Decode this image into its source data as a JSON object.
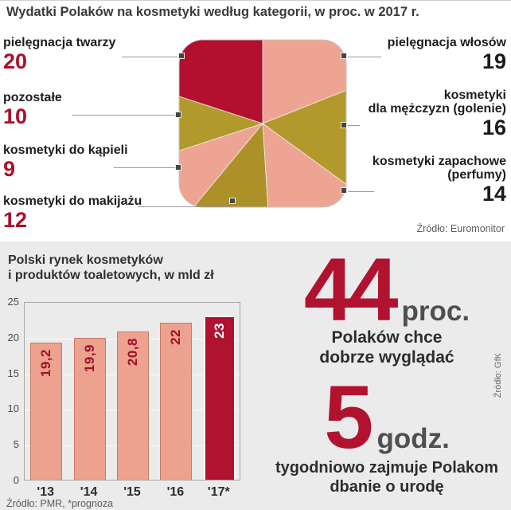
{
  "page": {
    "title": "Wydatki Polaków na kosmetyki  według kategorii, w proc. w 2017 r."
  },
  "pie_section": {
    "labels": {
      "twarz": "pielęgnacja twarzy",
      "pozostale": "pozostałe",
      "kapiel": "kosmetyki do kąpieli",
      "makijaz": "kosmetyki do makijażu",
      "wlosy": "pielęgnacja włosów",
      "mezczyzni_line1": "kosmetyki",
      "mezczyzni_line2": "dla mężczyzn (golenie)",
      "perfumy_line1": "kosmetyki zapachowe",
      "perfumy_line2": "(perfumy)"
    },
    "source": "Źródło: Euromonitor"
  },
  "bar_section": {
    "title_line1": "Polski rynek kosmetyków",
    "title_line2": "i produktów toaletowych, w mld zł",
    "source": "Źródło: PMR, *prognoza"
  },
  "stats": {
    "stat1_value": "44",
    "stat1_unit": "proc.",
    "stat1_line1": "Polaków chce",
    "stat1_line2": "dobrze wyglądać",
    "stat2_value": "5",
    "stat2_unit": "godz.",
    "stat2_line1": "tygodniowo zajmuje Polakom",
    "stat2_line2": "dbanie o urodę",
    "source": "Źródło: GfK"
  },
  "chart_data": [
    {
      "type": "pie",
      "title": "Wydatki Polaków na kosmetyki według kategorii, w proc. w 2017 r.",
      "labels": [
        "pielęgnacja włosów",
        "kosmetyki dla mężczyzn (golenie)",
        "kosmetyki zapachowe (perfumy)",
        "kosmetyki do makijażu",
        "kosmetyki do kąpieli",
        "pozostałe",
        "pielęgnacja twarzy"
      ],
      "values": [
        19,
        16,
        14,
        12,
        9,
        10,
        20
      ],
      "colors": [
        "#eea493",
        "#b2992b",
        "#eea493",
        "#ab9128",
        "#eea493",
        "#b2992b",
        "#b30f2f"
      ],
      "shape": "rounded-square",
      "start_angle_deg": 0,
      "direction": "clockwise",
      "source": "Źródło: Euromonitor"
    },
    {
      "type": "bar",
      "title": "Polski rynek kosmetyków i produktów toaletowych, w mld zł",
      "categories": [
        "'13",
        "'14",
        "'15",
        "'16",
        "'17*"
      ],
      "values": [
        19.2,
        19.9,
        20.8,
        22,
        23
      ],
      "value_labels": [
        "19,2",
        "19,9",
        "20,8",
        "22",
        "23"
      ],
      "ylim": [
        0,
        25
      ],
      "yticks": [
        0,
        5,
        10,
        15,
        20,
        25
      ],
      "bar_color": "#eda18f",
      "highlight_index": 4,
      "highlight_color": "#b01230",
      "grid": true,
      "source": "Źródło: PMR, *prognoza"
    }
  ]
}
